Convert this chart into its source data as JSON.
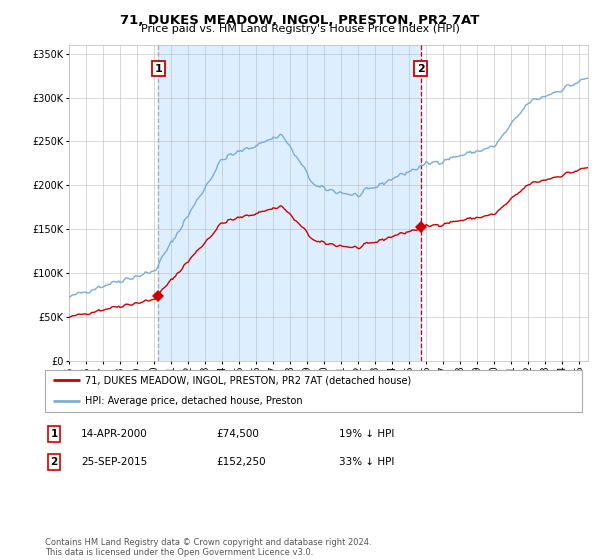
{
  "title": "71, DUKES MEADOW, INGOL, PRESTON, PR2 7AT",
  "subtitle": "Price paid vs. HM Land Registry's House Price Index (HPI)",
  "red_label": "71, DUKES MEADOW, INGOL, PRESTON, PR2 7AT (detached house)",
  "blue_label": "HPI: Average price, detached house, Preston",
  "sale1_date": "14-APR-2000",
  "sale1_price": 74500,
  "sale1_note": "19% ↓ HPI",
  "sale2_date": "25-SEP-2015",
  "sale2_price": 152250,
  "sale2_note": "33% ↓ HPI",
  "footer": "Contains HM Land Registry data © Crown copyright and database right 2024.\nThis data is licensed under the Open Government Licence v3.0.",
  "red_color": "#cc0000",
  "blue_color": "#7aadd4",
  "bg_color": "#ddeeff",
  "grid_color": "#bbbbbb",
  "vline1_color": "#aaaaaa",
  "vline2_color": "#cc0000",
  "ylim": [
    0,
    360000
  ],
  "xlim_start": 1995.0,
  "xlim_end": 2025.5
}
